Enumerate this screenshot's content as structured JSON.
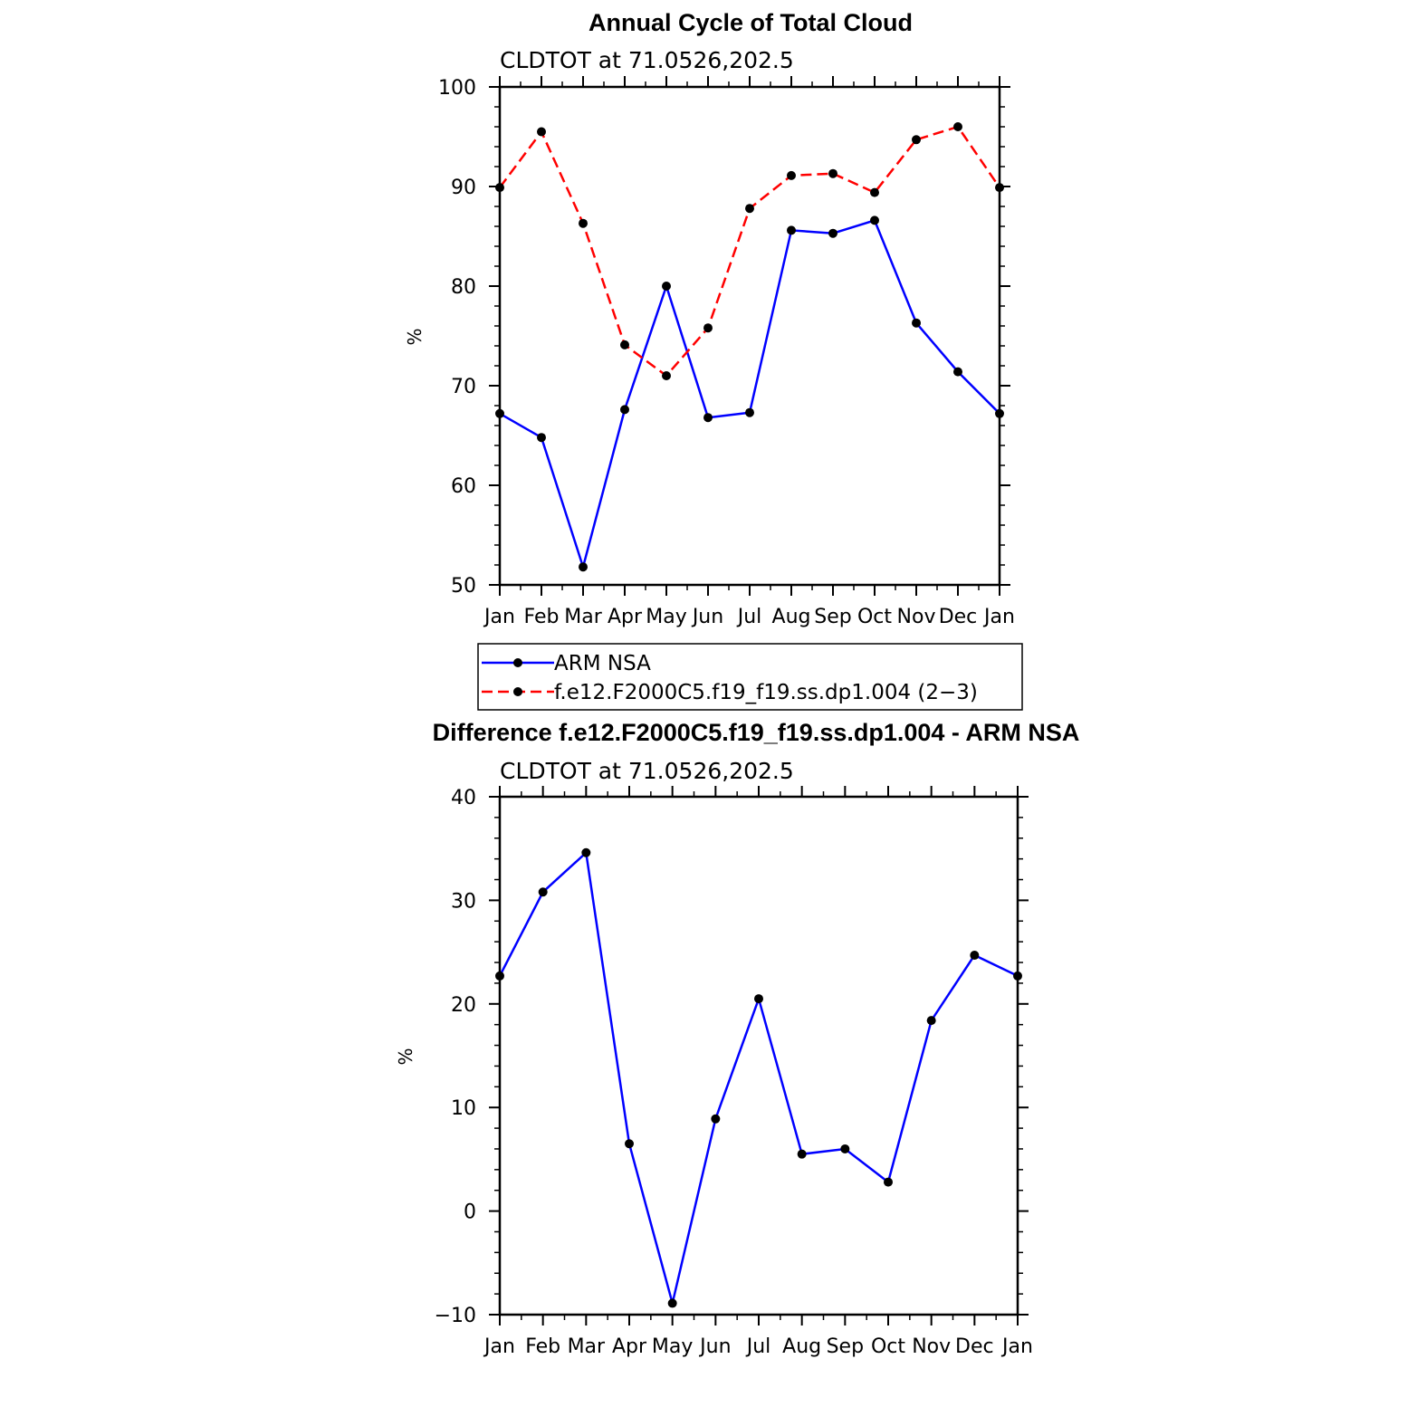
{
  "chart_data": [
    {
      "type": "line",
      "title": "Annual Cycle of Total Cloud",
      "subtitle": "CLDTOT at 71.0526,202.5",
      "xlabel": "",
      "ylabel": "%",
      "ylim": [
        50,
        100
      ],
      "yticks": [
        50,
        60,
        70,
        80,
        90,
        100
      ],
      "categories": [
        "Jan",
        "Feb",
        "Mar",
        "Apr",
        "May",
        "Jun",
        "Jul",
        "Aug",
        "Sep",
        "Oct",
        "Nov",
        "Dec",
        "Jan"
      ],
      "series": [
        {
          "name": "ARM NSA",
          "color": "#0000ff",
          "dash": "solid",
          "values": [
            67.2,
            64.8,
            51.8,
            67.6,
            80.0,
            66.8,
            67.3,
            85.6,
            85.3,
            86.6,
            76.3,
            71.4,
            67.2
          ]
        },
        {
          "name": "f.e12.F2000C5.f19_f19.ss.dp1.004 (2−3)",
          "color": "#ff0000",
          "dash": "dashed",
          "values": [
            89.9,
            95.5,
            86.3,
            74.1,
            71.0,
            75.8,
            87.8,
            91.1,
            91.3,
            89.4,
            94.7,
            96.0,
            89.9
          ]
        }
      ],
      "legend": [
        "ARM NSA",
        "f.e12.F2000C5.f19_f19.ss.dp1.004 (2−3)"
      ]
    },
    {
      "type": "line",
      "title": "Difference f.e12.F2000C5.f19_f19.ss.dp1.004 - ARM NSA",
      "subtitle": "CLDTOT at 71.0526,202.5",
      "xlabel": "",
      "ylabel": "%",
      "ylim": [
        -10,
        40
      ],
      "yticks": [
        -10,
        0,
        10,
        20,
        30,
        40
      ],
      "ytick_labels": [
        "−10",
        "0",
        "10",
        "20",
        "30",
        "40"
      ],
      "categories": [
        "Jan",
        "Feb",
        "Mar",
        "Apr",
        "May",
        "Jun",
        "Jul",
        "Aug",
        "Sep",
        "Oct",
        "Nov",
        "Dec",
        "Jan"
      ],
      "series": [
        {
          "name": "Difference",
          "color": "#0000ff",
          "dash": "solid",
          "values": [
            22.7,
            30.8,
            34.6,
            6.5,
            -8.9,
            8.9,
            20.5,
            5.5,
            6.0,
            2.8,
            18.4,
            24.7,
            22.7
          ]
        }
      ]
    }
  ]
}
